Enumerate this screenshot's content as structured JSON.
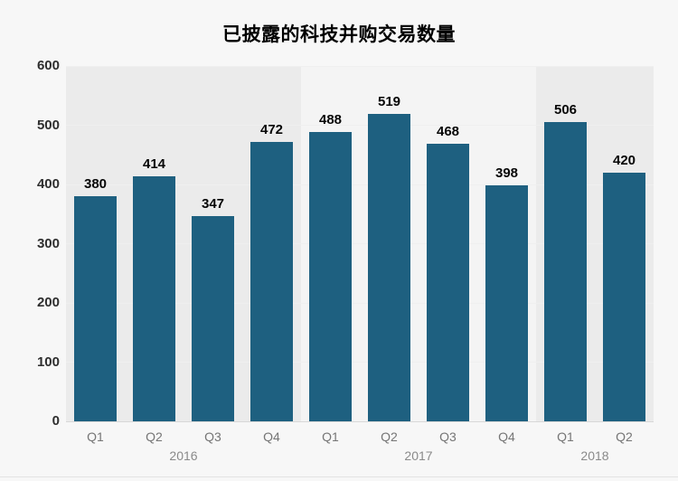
{
  "page": {
    "background": "#f7f7f7"
  },
  "chart_data": {
    "type": "bar",
    "title": "已披露的科技并购交易数量",
    "categories": [
      "Q1",
      "Q2",
      "Q3",
      "Q4",
      "Q1",
      "Q2",
      "Q3",
      "Q4",
      "Q1",
      "Q2"
    ],
    "values": [
      380,
      414,
      347,
      472,
      488,
      519,
      468,
      398,
      506,
      420
    ],
    "groups": [
      {
        "label": "2016",
        "count": 4
      },
      {
        "label": "2017",
        "count": 4
      },
      {
        "label": "2018",
        "count": 2
      }
    ],
    "xlabel": "",
    "ylabel": "",
    "ylim": [
      0,
      600
    ],
    "yticks": [
      0,
      100,
      200,
      300,
      400,
      500,
      600
    ],
    "grid": true,
    "legend": "none",
    "value_labels": true,
    "bar_color": "#1e6080",
    "band_colors": [
      "#ebebeb",
      "#f4f4f4",
      "#ebebeb"
    ],
    "gridline_color": "#efefef",
    "label_color": "#060606",
    "ytick_color": "#2e2e2e",
    "xtick_color": "#757575",
    "year_label_color": "#8a8a8a"
  }
}
